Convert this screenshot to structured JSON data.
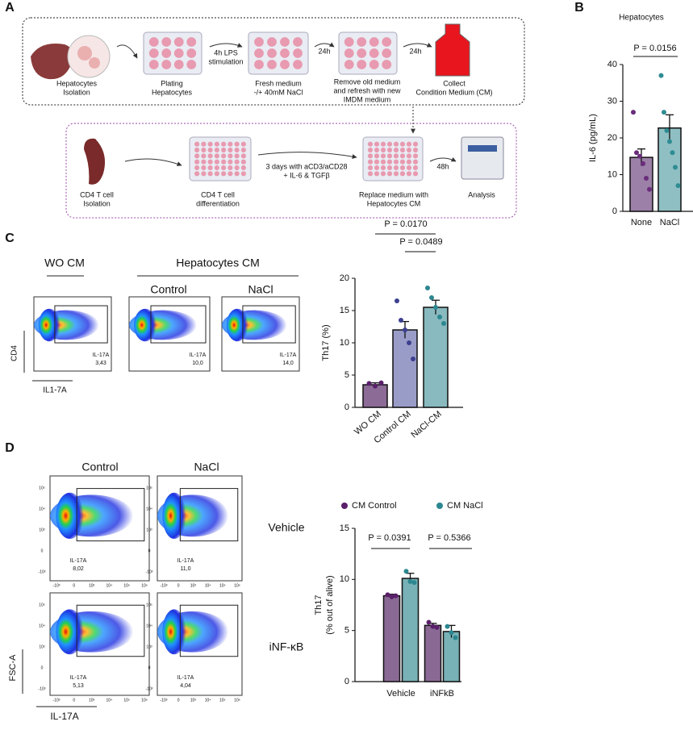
{
  "panel_labels": [
    "A",
    "B",
    "C",
    "D"
  ],
  "schematic": {
    "labels": [
      {
        "lines": [
          "Hepatocytes",
          "Isolation"
        ]
      },
      {
        "lines": [
          "Plating",
          "Hepatocytes"
        ]
      },
      {
        "lines": [
          "4h LPS",
          "stimulation"
        ]
      },
      {
        "lines": [
          "Fresh  medium",
          "-/+ 40mM NaCl"
        ]
      },
      {
        "lines": [
          "24h"
        ]
      },
      {
        "lines": [
          "Remove old medium",
          "and refresh with new",
          "IMDM medium"
        ]
      },
      {
        "lines": [
          "24h"
        ]
      },
      {
        "lines": [
          "Collect",
          "Condition Medium (CM)"
        ]
      },
      {
        "lines": [
          "CD4 T cell",
          "Isolation"
        ]
      },
      {
        "lines": [
          "CD4  T cell",
          "differentiation"
        ]
      },
      {
        "lines": [
          "3 days with  aCD3/aCD28",
          "+ IL-6 & TGFβ"
        ]
      },
      {
        "lines": [
          "Replace medium with",
          "Hepatocytes CM"
        ]
      },
      {
        "lines": [
          "48h"
        ]
      },
      {
        "lines": [
          "Analysis"
        ]
      }
    ]
  },
  "flow_c": {
    "headers": [
      "WO CM",
      "Hepatocytes CM",
      "Control",
      "NaCl"
    ],
    "y_axis": "CD4",
    "x_axis": "IL1-7A",
    "gates": [
      {
        "name": "IL-17A",
        "value": "3,43"
      },
      {
        "name": "IL-17A",
        "value": "10,0"
      },
      {
        "name": "IL-17A",
        "value": "14,0"
      }
    ]
  },
  "flow_d": {
    "columns": [
      "Control",
      "NaCl"
    ],
    "rows": [
      "Vehicle",
      "iNF-κB"
    ],
    "y_axis": "FSC-A",
    "x_axis": "IL-17A",
    "y_ticks": [
      "10⁵",
      "10⁴",
      "10³",
      "0",
      "-10³"
    ],
    "x_ticks": [
      "-10³",
      "0",
      "10³",
      "10⁴",
      "10⁵",
      "10⁶"
    ],
    "gates": [
      {
        "name": "IL-17A",
        "value": "8,02"
      },
      {
        "name": "IL-17A",
        "value": "11,0"
      },
      {
        "name": "IL-17A",
        "value": "5,13"
      },
      {
        "name": "IL-17A",
        "value": "4,04"
      }
    ]
  },
  "chart_data": [
    {
      "type": "bar",
      "title": "Hepatocytes",
      "ylabel": [
        "IL-6 (pg/mL)"
      ],
      "categories": [
        "None",
        "NaCl"
      ],
      "values": [
        14.7,
        22.7
      ],
      "errors": [
        2.3,
        3.6
      ],
      "colors": [
        "#9c80a8",
        "#8fbfc3"
      ],
      "point_colors": [
        "#6b2c7c",
        "#2f8c93"
      ],
      "points": [
        [
          27,
          16,
          15,
          13,
          9,
          6
        ],
        [
          37,
          27,
          22,
          19,
          16,
          12,
          7
        ]
      ],
      "ylim": [
        0,
        40
      ],
      "yticks": [
        0,
        10,
        20,
        30,
        40
      ],
      "comparisons": [
        {
          "label": "P = 0.0156"
        }
      ]
    },
    {
      "type": "bar",
      "ylabel": [
        "Th17 (%)"
      ],
      "categories": [
        "WO CM",
        "Control CM",
        "NaCl-CM"
      ],
      "values": [
        3.5,
        12,
        15.5
      ],
      "errors": [
        0.3,
        1.3,
        1.1
      ],
      "colors": [
        "#8c6b96",
        "#9a9cc8",
        "#88babf"
      ],
      "point_colors": [
        "#5a1f6a",
        "#3d3f8f",
        "#2c8790"
      ],
      "points": [
        [
          3.7,
          3.3,
          3.8
        ],
        [
          16.5,
          13.5,
          12,
          10,
          7.5
        ],
        [
          18.5,
          17,
          15.5,
          14,
          13
        ]
      ],
      "ylim": [
        0,
        20
      ],
      "yticks": [
        0,
        5,
        10,
        15,
        20
      ],
      "comparisons": [
        {
          "label": "P = 0.0170"
        },
        {
          "label": "P = 0.0489"
        }
      ]
    },
    {
      "type": "grouped-bar",
      "ylabel": [
        "Th17",
        "(% out of alive)"
      ],
      "categories": [
        "Vehicle",
        "iNFkB"
      ],
      "series": [
        {
          "name": "CM Control",
          "color": "#8a6a95",
          "point_color": "#5a1f6a",
          "values": [
            8.4,
            5.5
          ],
          "errors": [
            0.15,
            0.2
          ],
          "points": [
            [
              8.5,
              8.3,
              8.4
            ],
            [
              5.8,
              5.4,
              5.3
            ]
          ]
        },
        {
          "name": "CM NaCl",
          "color": "#78b1b6",
          "point_color": "#2c8790",
          "values": [
            10.1,
            4.9
          ],
          "errors": [
            0.5,
            0.6
          ],
          "points": [
            [
              10.8,
              9.8,
              9.7
            ],
            [
              5.4,
              4.8,
              4.3
            ]
          ]
        }
      ],
      "ylim": [
        0,
        15
      ],
      "yticks": [
        0,
        5,
        10,
        15
      ],
      "comparisons": [
        {
          "label": "P = 0.0391"
        },
        {
          "label": "P = 0.5366"
        }
      ]
    }
  ]
}
